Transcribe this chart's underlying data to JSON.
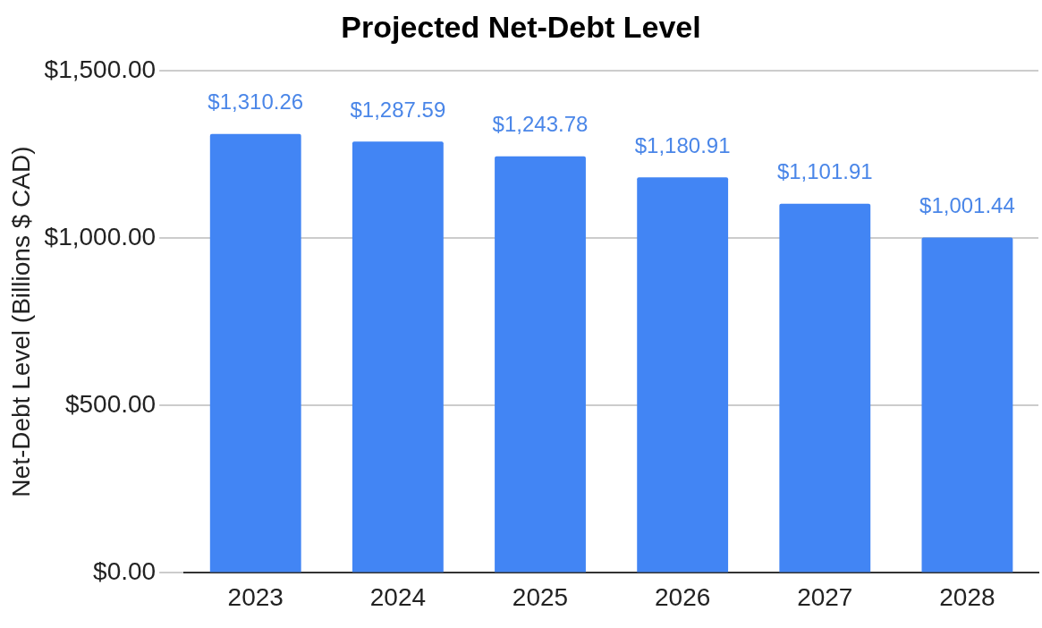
{
  "chart_data": {
    "type": "bar",
    "title": "Projected Net-Debt Level",
    "ylabel": "Net-Debt Level (Billions $ CAD)",
    "categories": [
      "2023",
      "2024",
      "2025",
      "2026",
      "2027",
      "2028"
    ],
    "values": [
      1310.26,
      1287.59,
      1243.78,
      1180.91,
      1101.91,
      1001.44
    ],
    "value_labels": [
      "$1,310.26",
      "$1,287.59",
      "$1,243.78",
      "$1,180.91",
      "$1,101.91",
      "$1,001.44"
    ],
    "color": "#4285f4",
    "ylim": [
      0,
      1500
    ],
    "yticks": [
      {
        "value": 0,
        "label": "$0.00"
      },
      {
        "value": 500,
        "label": "$500.00"
      },
      {
        "value": 1000,
        "label": "$1,000.00"
      },
      {
        "value": 1500,
        "label": "$1,500.00"
      }
    ],
    "grid": "y",
    "legend": false
  }
}
